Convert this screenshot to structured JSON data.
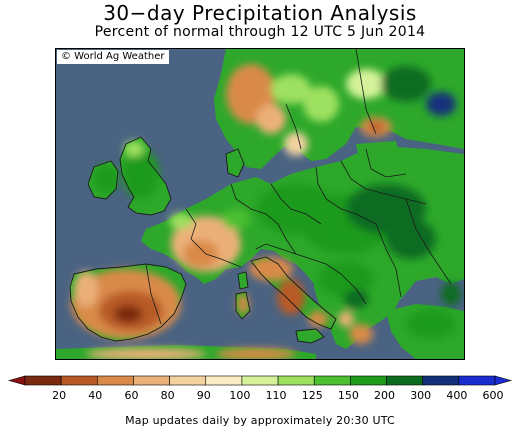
{
  "header": {
    "title": "30−day Precipitation Analysis",
    "subtitle": "Percent of normal through 12 UTC 5 Jun 2014"
  },
  "map": {
    "credit": "© World Ag Weather",
    "region": "Europe",
    "ocean_color": "#4a6382",
    "border_color": "#1a1a1a"
  },
  "legend": {
    "bins": [
      {
        "label": "20",
        "color": "#7a2a10"
      },
      {
        "label": "40",
        "color": "#b85a26"
      },
      {
        "label": "60",
        "color": "#d98a4a"
      },
      {
        "label": "80",
        "color": "#ebb078"
      },
      {
        "label": "90",
        "color": "#f3d2a0"
      },
      {
        "label": "100",
        "color": "#fbeec6"
      },
      {
        "label": "110",
        "color": "#d5f29a"
      },
      {
        "label": "125",
        "color": "#9ee060"
      },
      {
        "label": "150",
        "color": "#4cc030"
      },
      {
        "label": "200",
        "color": "#1f9a1a"
      },
      {
        "label": "300",
        "color": "#0b6c20"
      },
      {
        "label": "400",
        "color": "#12307a"
      },
      {
        "label": "600",
        "color": "#1a2bd0"
      }
    ],
    "low_arrow_color": "#8a1010",
    "high_arrow_color": "#1a2bd0"
  },
  "footer": {
    "note": "Map updates daily by approximately 20:30 UTC"
  }
}
